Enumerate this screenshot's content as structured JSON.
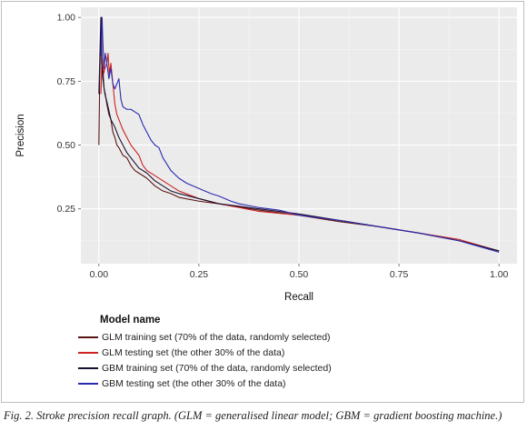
{
  "caption": "Fig. 2. Stroke precision recall graph. (GLM = generalised linear model; GBM = gradient boosting machine.)",
  "chart_data": {
    "type": "line",
    "xlabel": "Recall",
    "ylabel": "Precision",
    "xlim": [
      -0.045,
      1.045
    ],
    "ylim": [
      0.035,
      1.04
    ],
    "xticks": [
      0.0,
      0.25,
      0.5,
      0.75,
      1.0
    ],
    "xtick_labels": [
      "0.00",
      "0.25",
      "0.50",
      "0.75",
      "1.00"
    ],
    "yticks": [
      0.25,
      0.5,
      0.75,
      1.0
    ],
    "ytick_labels": [
      "0.25",
      "0.50",
      "0.75",
      "1.00"
    ],
    "grid": true,
    "background": "#ebebeb",
    "legend": {
      "title": "Model name",
      "placement": "bottom-left"
    },
    "series": [
      {
        "name": "GLM training set (70% of the data, randomly selected)",
        "color": "#5a1414",
        "points": [
          [
            0.0,
            0.5
          ],
          [
            0.002,
            0.75
          ],
          [
            0.004,
            0.9
          ],
          [
            0.006,
            1.0
          ],
          [
            0.008,
            0.78
          ],
          [
            0.01,
            0.8
          ],
          [
            0.013,
            0.72
          ],
          [
            0.016,
            0.7
          ],
          [
            0.02,
            0.66
          ],
          [
            0.025,
            0.62
          ],
          [
            0.03,
            0.6
          ],
          [
            0.035,
            0.55
          ],
          [
            0.04,
            0.53
          ],
          [
            0.045,
            0.5
          ],
          [
            0.05,
            0.49
          ],
          [
            0.06,
            0.46
          ],
          [
            0.07,
            0.45
          ],
          [
            0.08,
            0.42
          ],
          [
            0.09,
            0.4
          ],
          [
            0.1,
            0.39
          ],
          [
            0.12,
            0.37
          ],
          [
            0.14,
            0.34
          ],
          [
            0.16,
            0.32
          ],
          [
            0.18,
            0.31
          ],
          [
            0.2,
            0.295
          ],
          [
            0.25,
            0.28
          ],
          [
            0.3,
            0.27
          ],
          [
            0.4,
            0.245
          ],
          [
            0.5,
            0.225
          ],
          [
            0.6,
            0.2
          ],
          [
            0.7,
            0.18
          ],
          [
            0.8,
            0.155
          ],
          [
            0.9,
            0.125
          ],
          [
            1.0,
            0.085
          ]
        ]
      },
      {
        "name": "GLM testing set (the other 30% of the data)",
        "color": "#cc2222",
        "points": [
          [
            0.005,
            0.7
          ],
          [
            0.008,
            0.84
          ],
          [
            0.012,
            0.78
          ],
          [
            0.015,
            0.8
          ],
          [
            0.02,
            0.82
          ],
          [
            0.023,
            0.86
          ],
          [
            0.026,
            0.78
          ],
          [
            0.03,
            0.82
          ],
          [
            0.035,
            0.74
          ],
          [
            0.04,
            0.66
          ],
          [
            0.045,
            0.62
          ],
          [
            0.05,
            0.6
          ],
          [
            0.06,
            0.56
          ],
          [
            0.07,
            0.53
          ],
          [
            0.08,
            0.5
          ],
          [
            0.09,
            0.48
          ],
          [
            0.1,
            0.46
          ],
          [
            0.11,
            0.42
          ],
          [
            0.12,
            0.4
          ],
          [
            0.14,
            0.38
          ],
          [
            0.16,
            0.36
          ],
          [
            0.18,
            0.34
          ],
          [
            0.2,
            0.32
          ],
          [
            0.25,
            0.29
          ],
          [
            0.3,
            0.27
          ],
          [
            0.35,
            0.255
          ],
          [
            0.4,
            0.24
          ],
          [
            0.5,
            0.225
          ],
          [
            0.6,
            0.205
          ],
          [
            0.7,
            0.18
          ],
          [
            0.8,
            0.155
          ],
          [
            0.9,
            0.13
          ],
          [
            1.0,
            0.085
          ]
        ]
      },
      {
        "name": "GBM training set (70% of the data, randomly selected)",
        "color": "#1a1030",
        "points": [
          [
            0.0,
            0.7
          ],
          [
            0.003,
            0.88
          ],
          [
            0.005,
            1.0
          ],
          [
            0.007,
            0.82
          ],
          [
            0.01,
            0.76
          ],
          [
            0.015,
            0.7
          ],
          [
            0.02,
            0.67
          ],
          [
            0.03,
            0.6
          ],
          [
            0.04,
            0.57
          ],
          [
            0.05,
            0.53
          ],
          [
            0.06,
            0.5
          ],
          [
            0.07,
            0.47
          ],
          [
            0.08,
            0.45
          ],
          [
            0.09,
            0.43
          ],
          [
            0.1,
            0.41
          ],
          [
            0.12,
            0.39
          ],
          [
            0.14,
            0.36
          ],
          [
            0.16,
            0.34
          ],
          [
            0.18,
            0.32
          ],
          [
            0.2,
            0.31
          ],
          [
            0.25,
            0.29
          ],
          [
            0.3,
            0.27
          ],
          [
            0.4,
            0.25
          ],
          [
            0.5,
            0.23
          ],
          [
            0.6,
            0.205
          ],
          [
            0.7,
            0.18
          ],
          [
            0.8,
            0.155
          ],
          [
            0.9,
            0.125
          ],
          [
            1.0,
            0.085
          ]
        ]
      },
      {
        "name": "GBM testing set (the other 30% of the data)",
        "color": "#2a2ab0",
        "points": [
          [
            0.005,
            0.85
          ],
          [
            0.008,
            1.0
          ],
          [
            0.01,
            0.9
          ],
          [
            0.013,
            0.8
          ],
          [
            0.016,
            0.86
          ],
          [
            0.02,
            0.82
          ],
          [
            0.025,
            0.76
          ],
          [
            0.03,
            0.8
          ],
          [
            0.035,
            0.74
          ],
          [
            0.04,
            0.72
          ],
          [
            0.05,
            0.76
          ],
          [
            0.055,
            0.68
          ],
          [
            0.06,
            0.65
          ],
          [
            0.07,
            0.64
          ],
          [
            0.08,
            0.64
          ],
          [
            0.09,
            0.63
          ],
          [
            0.1,
            0.62
          ],
          [
            0.11,
            0.58
          ],
          [
            0.12,
            0.55
          ],
          [
            0.13,
            0.52
          ],
          [
            0.14,
            0.5
          ],
          [
            0.15,
            0.49
          ],
          [
            0.16,
            0.45
          ],
          [
            0.18,
            0.4
          ],
          [
            0.2,
            0.37
          ],
          [
            0.22,
            0.35
          ],
          [
            0.25,
            0.33
          ],
          [
            0.28,
            0.31
          ],
          [
            0.3,
            0.3
          ],
          [
            0.33,
            0.28
          ],
          [
            0.35,
            0.27
          ],
          [
            0.4,
            0.255
          ],
          [
            0.45,
            0.245
          ],
          [
            0.5,
            0.225
          ],
          [
            0.55,
            0.215
          ],
          [
            0.6,
            0.205
          ],
          [
            0.7,
            0.18
          ],
          [
            0.8,
            0.155
          ],
          [
            0.9,
            0.125
          ],
          [
            1.0,
            0.08
          ]
        ]
      }
    ]
  }
}
